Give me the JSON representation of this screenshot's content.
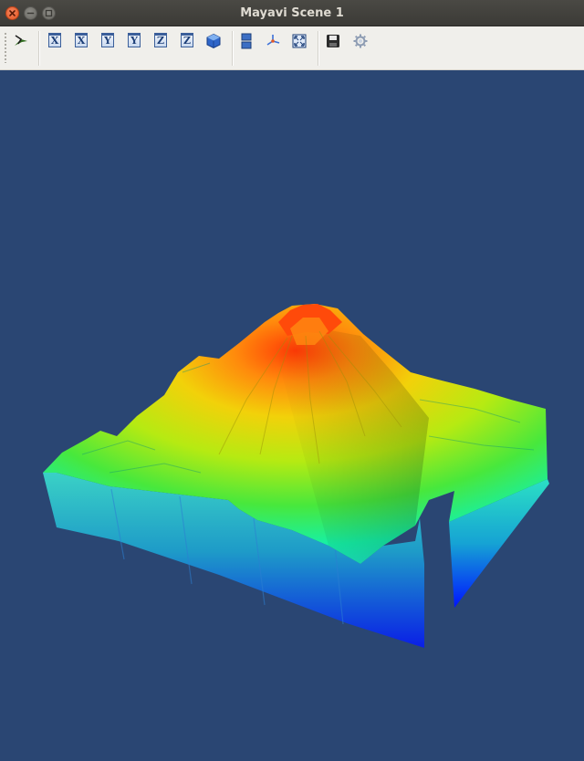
{
  "window": {
    "title": "Mayavi Scene 1"
  },
  "toolbar": {
    "items": [
      {
        "name": "mayavi-pipeline-icon"
      },
      {
        "name": "view-x-plus-icon",
        "label": "X"
      },
      {
        "name": "view-x-minus-icon",
        "label": "X"
      },
      {
        "name": "view-y-plus-icon",
        "label": "Y"
      },
      {
        "name": "view-y-minus-icon",
        "label": "Y"
      },
      {
        "name": "view-z-plus-icon",
        "label": "Z"
      },
      {
        "name": "view-z-minus-icon",
        "label": "Z"
      },
      {
        "name": "isometric-view-icon"
      },
      {
        "name": "parallel-projection-icon"
      },
      {
        "name": "axes-indicator-icon"
      },
      {
        "name": "fullscreen-icon"
      },
      {
        "name": "save-icon"
      },
      {
        "name": "settings-gear-icon"
      }
    ]
  },
  "scene": {
    "background_color": "#2a4673",
    "colormap": [
      "#0000ff",
      "#00ffff",
      "#00ff00",
      "#ffff00",
      "#ff0000"
    ],
    "object": "3d-terrain-surface-plot"
  }
}
